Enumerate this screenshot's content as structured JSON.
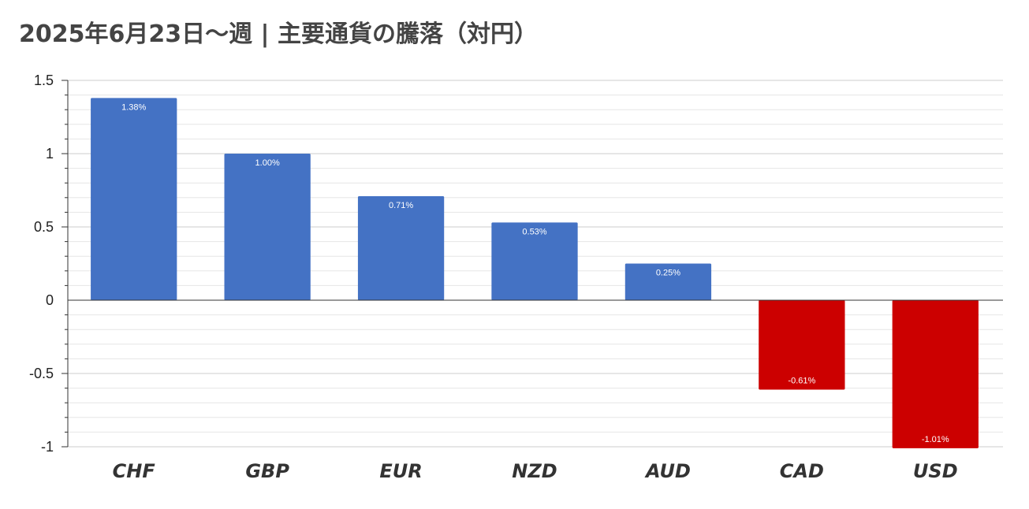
{
  "title": "2025年6月23日～週 | 主要通貨の騰落（対円）",
  "colors": {
    "positive": "#4472c4",
    "negative": "#cc0000",
    "grid_major": "#cccccc",
    "grid_minor": "#e6e6e6",
    "axis": "#333333"
  },
  "chart_data": {
    "type": "bar",
    "title": "2025年6月23日～週 | 主要通貨の騰落（対円）",
    "categories": [
      "CHF",
      "GBP",
      "EUR",
      "NZD",
      "AUD",
      "CAD",
      "USD"
    ],
    "values": [
      1.38,
      1.0,
      0.71,
      0.53,
      0.25,
      -0.61,
      -1.01
    ],
    "data_labels": [
      "1.38%",
      "1.00%",
      "0.71%",
      "0.53%",
      "0.25%",
      "-0.61%",
      "-1.01%"
    ],
    "ylim": [
      -1,
      1.5
    ],
    "yticks": [
      1.5,
      1,
      0.5,
      0,
      -0.5,
      -1
    ],
    "ytick_labels": [
      "1.5",
      "1",
      "0.5",
      "0",
      "-0.5",
      "-1"
    ],
    "minor_step": 0.1,
    "grid": true,
    "legend": "none",
    "xlabel": "",
    "ylabel": ""
  }
}
